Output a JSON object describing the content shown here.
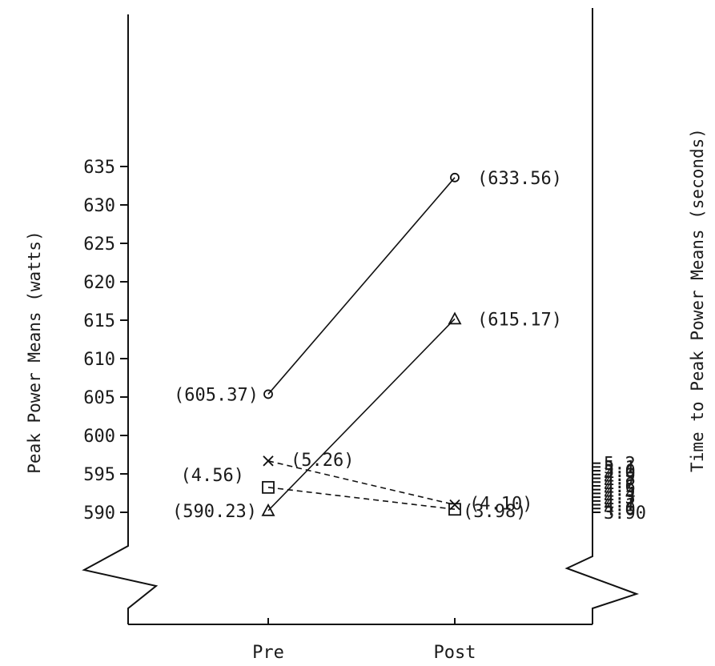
{
  "chart_data": {
    "type": "line",
    "categories": [
      "Pre",
      "Post"
    ],
    "left_axis": {
      "label": "Peak Power Means (watts)",
      "ticks": [
        "590",
        "595",
        "600",
        "605",
        "610",
        "615",
        "620",
        "625",
        "630",
        "635"
      ],
      "range": [
        590,
        635
      ]
    },
    "right_axis": {
      "label": "Time to Peak Power Means (seconds)",
      "ticks": [
        "3.90",
        "4.0",
        "4.1",
        "4.2",
        "4.3",
        "4.4",
        "4.5",
        "4.6",
        "4.7",
        "4.8",
        "4.9",
        "5.0",
        "5.1",
        "5.2"
      ],
      "range": [
        3.9,
        5.2
      ]
    },
    "series": [
      {
        "axis": "left",
        "marker": "circle",
        "line": "solid",
        "values": [
          605.37,
          633.56
        ],
        "labels": [
          "(605.37)",
          "(633.56)"
        ]
      },
      {
        "axis": "left",
        "marker": "triangle",
        "line": "solid",
        "values": [
          590.23,
          615.17
        ],
        "labels": [
          "(590.23)",
          "(615.17)"
        ]
      },
      {
        "axis": "right",
        "marker": "square",
        "line": "dashed",
        "values": [
          4.56,
          3.98
        ],
        "labels": [
          "(4.56)",
          "(3.98)"
        ]
      },
      {
        "axis": "right",
        "marker": "x",
        "line": "dashed",
        "values": [
          5.26,
          4.1
        ],
        "labels": [
          "(5.26)",
          "(4.10)"
        ]
      }
    ],
    "legend": "none",
    "grid": false
  }
}
